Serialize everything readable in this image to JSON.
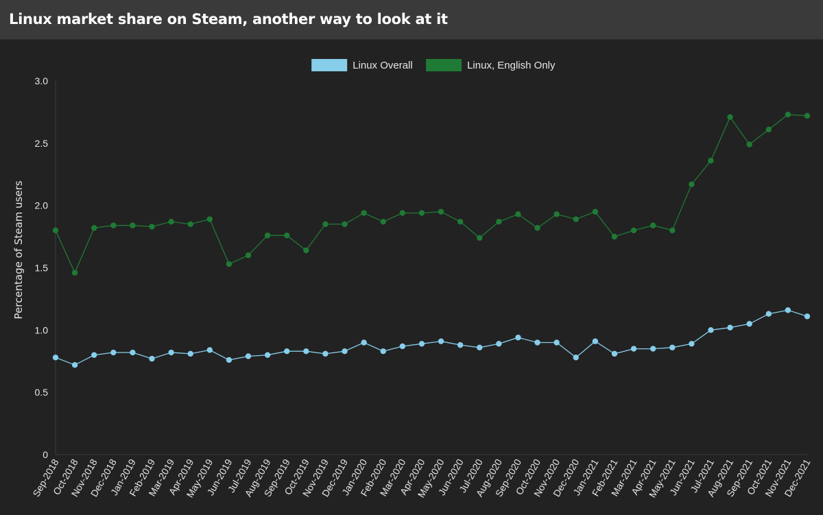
{
  "page": {
    "title": "Linux market share on Steam, another way to look at it"
  },
  "colors": {
    "background": "#222222",
    "title_bar": "#3a3a3a",
    "series_overall": "#87ceeb",
    "series_english": "#1f7a35"
  },
  "chart_data": {
    "type": "line",
    "title": "",
    "xlabel": "",
    "ylabel": "Percentage of Steam users",
    "ylim": [
      0,
      3.0
    ],
    "yticks": [
      "0",
      "0.5",
      "1.0",
      "1.5",
      "2.0",
      "2.5",
      "3.0"
    ],
    "grid": false,
    "legend_position": "top-center",
    "categories": [
      "Sep-2018",
      "Oct-2018",
      "Nov-2018",
      "Dec-2018",
      "Jan-2019",
      "Feb-2019",
      "Mar-2019",
      "Apr-2019",
      "May-2019",
      "Jun-2019",
      "Jul-2019",
      "Aug-2019",
      "Sep-2019",
      "Oct-2019",
      "Nov-2019",
      "Dec-2019",
      "Jan-2020",
      "Feb-2020",
      "Mar-2020",
      "Apr-2020",
      "May-2020",
      "Jun-2020",
      "Jul-2020",
      "Aug-2020",
      "Sep-2020",
      "Oct-2020",
      "Nov-2020",
      "Dec-2020",
      "Jan-2021",
      "Feb-2021",
      "Mar-2021",
      "Apr-2021",
      "May-2021",
      "Jun-2021",
      "Jul-2021",
      "Aug-2021",
      "Sep-2021",
      "Oct-2021",
      "Nov-2021",
      "Dec-2021"
    ],
    "series": [
      {
        "name": "Linux Overall",
        "color": "#87ceeb",
        "values": [
          0.78,
          0.72,
          0.8,
          0.82,
          0.82,
          0.77,
          0.82,
          0.81,
          0.84,
          0.76,
          0.79,
          0.8,
          0.83,
          0.83,
          0.81,
          0.83,
          0.9,
          0.83,
          0.87,
          0.89,
          0.91,
          0.88,
          0.86,
          0.89,
          0.94,
          0.9,
          0.9,
          0.78,
          0.91,
          0.81,
          0.85,
          0.85,
          0.86,
          0.89,
          1.0,
          1.02,
          1.05,
          1.13,
          1.16,
          1.11
        ]
      },
      {
        "name": "Linux, English Only",
        "color": "#1f7a35",
        "values": [
          1.8,
          1.46,
          1.82,
          1.84,
          1.84,
          1.83,
          1.87,
          1.85,
          1.89,
          1.53,
          1.6,
          1.76,
          1.76,
          1.64,
          1.85,
          1.85,
          1.94,
          1.87,
          1.94,
          1.94,
          1.95,
          1.87,
          1.74,
          1.87,
          1.93,
          1.82,
          1.93,
          1.89,
          1.95,
          1.75,
          1.8,
          1.84,
          1.8,
          2.17,
          2.36,
          2.71,
          2.49,
          2.61,
          2.73,
          2.72
        ]
      }
    ]
  }
}
